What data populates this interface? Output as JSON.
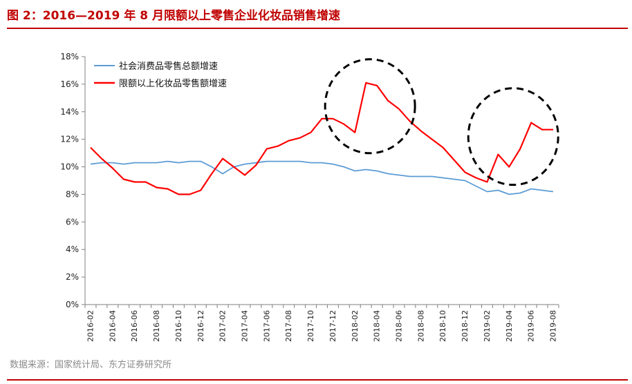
{
  "page": {
    "title": "图 2：2016—2019 年 8 月限额以上零售企业化妆品销售增速",
    "source": "数据来源：国家统计局、东方证券研究所"
  },
  "colors": {
    "accent": "#c00000",
    "series_blue": "#5b9bd5",
    "series_red": "#ff0000"
  },
  "chart_data": {
    "type": "line",
    "title": "",
    "xlabel": "",
    "ylabel": "",
    "ylim": [
      0,
      18
    ],
    "yticks": [
      "0%",
      "2%",
      "4%",
      "6%",
      "8%",
      "10%",
      "12%",
      "14%",
      "16%",
      "18%"
    ],
    "grid": false,
    "legend_position": "top-left",
    "x": [
      "2016-02",
      "2016-03",
      "2016-04",
      "2016-05",
      "2016-06",
      "2016-07",
      "2016-08",
      "2016-09",
      "2016-10",
      "2016-11",
      "2016-12",
      "2017-01",
      "2017-02",
      "2017-03",
      "2017-04",
      "2017-05",
      "2017-06",
      "2017-07",
      "2017-08",
      "2017-09",
      "2017-10",
      "2017-11",
      "2017-12",
      "2018-01",
      "2018-02",
      "2018-03",
      "2018-04",
      "2018-05",
      "2018-06",
      "2018-07",
      "2018-08",
      "2018-09",
      "2018-10",
      "2018-11",
      "2018-12",
      "2019-01",
      "2019-02",
      "2019-03",
      "2019-04",
      "2019-05",
      "2019-06",
      "2019-07",
      "2019-08"
    ],
    "x_tick_labels": [
      "2016-02",
      "2016-04",
      "2016-06",
      "2016-08",
      "2016-10",
      "2016-12",
      "2017-02",
      "2017-04",
      "2017-06",
      "2017-08",
      "2017-10",
      "2017-12",
      "2018-02",
      "2018-04",
      "2018-06",
      "2018-08",
      "2018-10",
      "2018-12",
      "2019-02",
      "2019-04",
      "2019-06",
      "2019-08"
    ],
    "series": [
      {
        "name": "社会消费品零售总额增速",
        "color": "#5b9bd5",
        "values": [
          10.2,
          10.3,
          10.3,
          10.2,
          10.3,
          10.3,
          10.3,
          10.4,
          10.3,
          10.4,
          10.4,
          10.0,
          9.5,
          10.0,
          10.2,
          10.3,
          10.4,
          10.4,
          10.4,
          10.4,
          10.3,
          10.3,
          10.2,
          10.0,
          9.7,
          9.8,
          9.7,
          9.5,
          9.4,
          9.3,
          9.3,
          9.3,
          9.2,
          9.1,
          9.0,
          8.6,
          8.2,
          8.3,
          8.0,
          8.1,
          8.4,
          8.3,
          8.2
        ]
      },
      {
        "name": "限额以上化妆品零售额增速",
        "color": "#ff0000",
        "values": [
          11.4,
          10.6,
          9.9,
          9.1,
          8.9,
          8.9,
          8.5,
          8.4,
          8.0,
          8.0,
          8.3,
          9.5,
          10.6,
          10.0,
          9.4,
          10.1,
          11.3,
          11.5,
          11.9,
          12.1,
          12.5,
          13.5,
          13.5,
          13.1,
          12.5,
          16.1,
          15.9,
          14.8,
          14.2,
          13.3,
          12.6,
          12.0,
          11.4,
          10.5,
          9.6,
          9.2,
          8.9,
          10.9,
          10.0,
          11.3,
          13.2,
          12.7,
          12.7
        ]
      }
    ],
    "annotations": [
      "dashed-circle-2018-04",
      "dashed-circle-2019-05"
    ]
  }
}
